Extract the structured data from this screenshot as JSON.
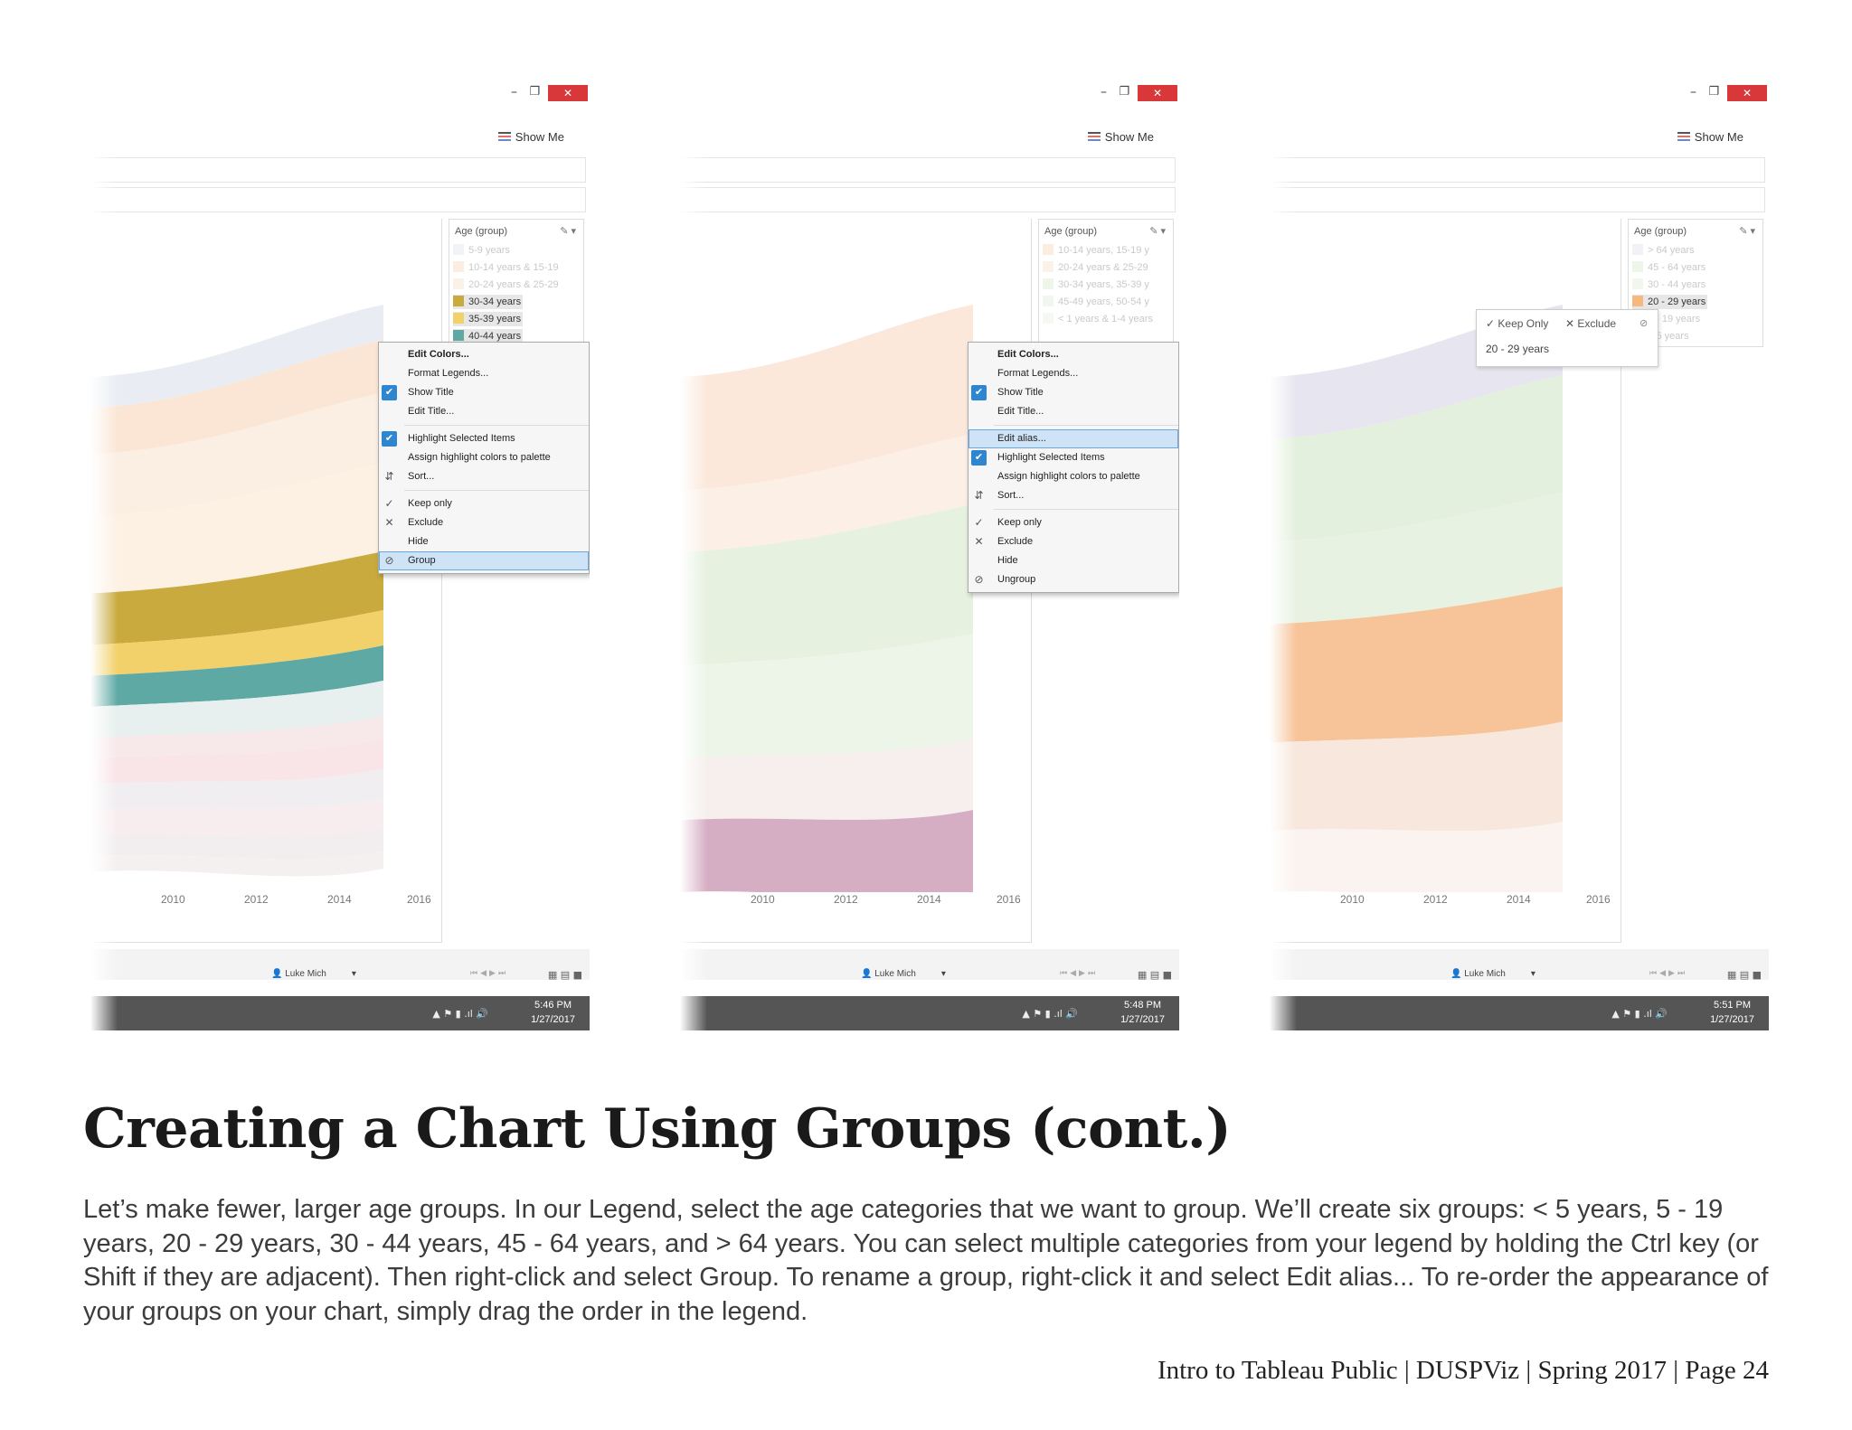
{
  "screenshots": [
    {
      "show_me": "Show Me",
      "legend_title": "Age (group)",
      "legend_items": [
        {
          "label": "5-9 years",
          "color": "#dfe4ee",
          "state": "dim"
        },
        {
          "label": "10-14 years & 15-19",
          "color": "#f8d7bd",
          "state": "dim"
        },
        {
          "label": "20-24 years & 25-29",
          "color": "#f4e2cc",
          "state": "dim"
        },
        {
          "label": "30-34 years",
          "color": "#c9aa3e",
          "state": "sel"
        },
        {
          "label": "35-39 years",
          "color": "#f2d16b",
          "state": "sel"
        },
        {
          "label": "40-44 years",
          "color": "#5fa9a4",
          "state": "sel"
        }
      ],
      "menu": [
        {
          "label": "Edit Colors...",
          "icon": "",
          "bold": true
        },
        {
          "label": "Format Legends...",
          "icon": ""
        },
        {
          "label": "Show Title",
          "icon": "check"
        },
        {
          "label": "Edit Title...",
          "icon": ""
        },
        {
          "sep": true
        },
        {
          "label": "Highlight Selected Items",
          "icon": "check"
        },
        {
          "label": "Assign highlight colors to palette",
          "icon": ""
        },
        {
          "label": "Sort...",
          "icon": "sort"
        },
        {
          "sep": true
        },
        {
          "label": "Keep only",
          "icon": "tick"
        },
        {
          "label": "Exclude",
          "icon": "x"
        },
        {
          "label": "Hide",
          "icon": ""
        },
        {
          "label": "Group",
          "icon": "paperclip",
          "highlighted": true
        }
      ],
      "x_axis": [
        "2010",
        "2012",
        "2014",
        "2016"
      ],
      "user": "Luke Mich",
      "time": "5:46 PM",
      "date": "1/27/2017"
    },
    {
      "show_me": "Show Me",
      "legend_title": "Age (group)",
      "legend_items": [
        {
          "label": "10-14 years, 15-19 y",
          "color": "#f8d7bd",
          "state": "dim"
        },
        {
          "label": "20-24 years & 25-29",
          "color": "#f4e2cc",
          "state": "dim"
        },
        {
          "label": "30-34 years, 35-39 y",
          "color": "#d9ead0",
          "state": "dim"
        },
        {
          "label": "45-49 years, 50-54 y",
          "color": "#e3ecdd",
          "state": "dim"
        },
        {
          "label": "< 1 years & 1-4 years",
          "color": "#eaf0e4",
          "state": "dim"
        }
      ],
      "menu": [
        {
          "label": "Edit Colors...",
          "icon": "",
          "bold": true
        },
        {
          "label": "Format Legends...",
          "icon": ""
        },
        {
          "label": "Show Title",
          "icon": "check"
        },
        {
          "label": "Edit Title...",
          "icon": ""
        },
        {
          "sep": true
        },
        {
          "label": "Edit alias...",
          "icon": "",
          "highlighted": true
        },
        {
          "label": "Highlight Selected Items",
          "icon": "check"
        },
        {
          "label": "Assign highlight colors to palette",
          "icon": ""
        },
        {
          "label": "Sort...",
          "icon": "sort"
        },
        {
          "sep": true
        },
        {
          "label": "Keep only",
          "icon": "tick"
        },
        {
          "label": "Exclude",
          "icon": "x"
        },
        {
          "label": "Hide",
          "icon": ""
        },
        {
          "label": "Ungroup",
          "icon": "paperclip"
        }
      ],
      "x_axis": [
        "2010",
        "2012",
        "2014",
        "2016"
      ],
      "user": "Luke Mich",
      "time": "5:48 PM",
      "date": "1/27/2017"
    },
    {
      "show_me": "Show Me",
      "legend_title": "Age (group)",
      "legend_items": [
        {
          "label": "> 64 years",
          "color": "#dfe1ee",
          "state": "dim"
        },
        {
          "label": "45 - 64 years",
          "color": "#d8ebcf",
          "state": "dim"
        },
        {
          "label": "30 - 44 years",
          "color": "#e1ecd9",
          "state": "dim"
        },
        {
          "label": "20 - 29 years",
          "color": "#f7b87f",
          "state": "sel"
        },
        {
          "label": "5 - 19 years",
          "color": "#f4e2cc",
          "state": "dim"
        },
        {
          "label": "< 5 years",
          "color": "#f2ddd6",
          "state": "dim"
        }
      ],
      "tooltip": {
        "keep_only": "Keep Only",
        "exclude": "Exclude",
        "text": "20 - 29 years"
      },
      "x_axis": [
        "2010",
        "2012",
        "2014",
        "2016"
      ],
      "user": "Luke Mich",
      "time": "5:51 PM",
      "date": "1/27/2017"
    }
  ],
  "heading": "Creating a Chart Using Groups (cont.)",
  "body": "Let’s make fewer, larger age groups. In our Legend, select the age categories that we want to group. We’ll create six groups: < 5 years, 5 - 19 years, 20 - 29 years, 30 - 44 years, 45 - 64 years, and > 64 years. You can select multiple categories from your legend by holding the Ctrl key (or Shift if they are adjacent). Then right-click and select Group. To rename a group, right-click it and select Edit alias... To re-order the appearance of your groups on your chart, simply drag the order in the legend.",
  "footer": "Intro to Tableau Public | DUSPViz | Spring 2017 | Page 24",
  "window_controls": {
    "min": "–",
    "restore": "❐",
    "close": "✕"
  },
  "bands": [
    {
      "colors": [
        "#e9edf3",
        "#fbe6d6",
        "#fbeee3",
        "#fdf1e4",
        "#c9aa3e",
        "#f2d16b",
        "#5fa9a4",
        "#e7f0ee",
        "#f7e8ea",
        "#f9e4e8",
        "#f0eef0",
        "#f7edef",
        "#f2eef0",
        "#f5f0f0"
      ],
      "fractions": [
        0.06,
        0.09,
        0.12,
        0.15,
        0.1,
        0.06,
        0.06,
        0.06,
        0.04,
        0.05,
        0.05,
        0.05,
        0.04,
        0.03
      ]
    },
    {
      "colors": [
        "#fbe8da",
        "#fbefe6",
        "#e6f1e0",
        "#edf5e9",
        "#f6efee",
        "#d6aec4"
      ],
      "fractions": [
        0.22,
        0.12,
        0.22,
        0.18,
        0.12,
        0.14
      ]
    },
    {
      "colors": [
        "#e7e6f0",
        "#e3f0dd",
        "#e8f2e3",
        "#f7c499",
        "#f8e7dc",
        "#fbf3ef"
      ],
      "fractions": [
        0.12,
        0.2,
        0.16,
        0.23,
        0.17,
        0.12
      ]
    }
  ]
}
